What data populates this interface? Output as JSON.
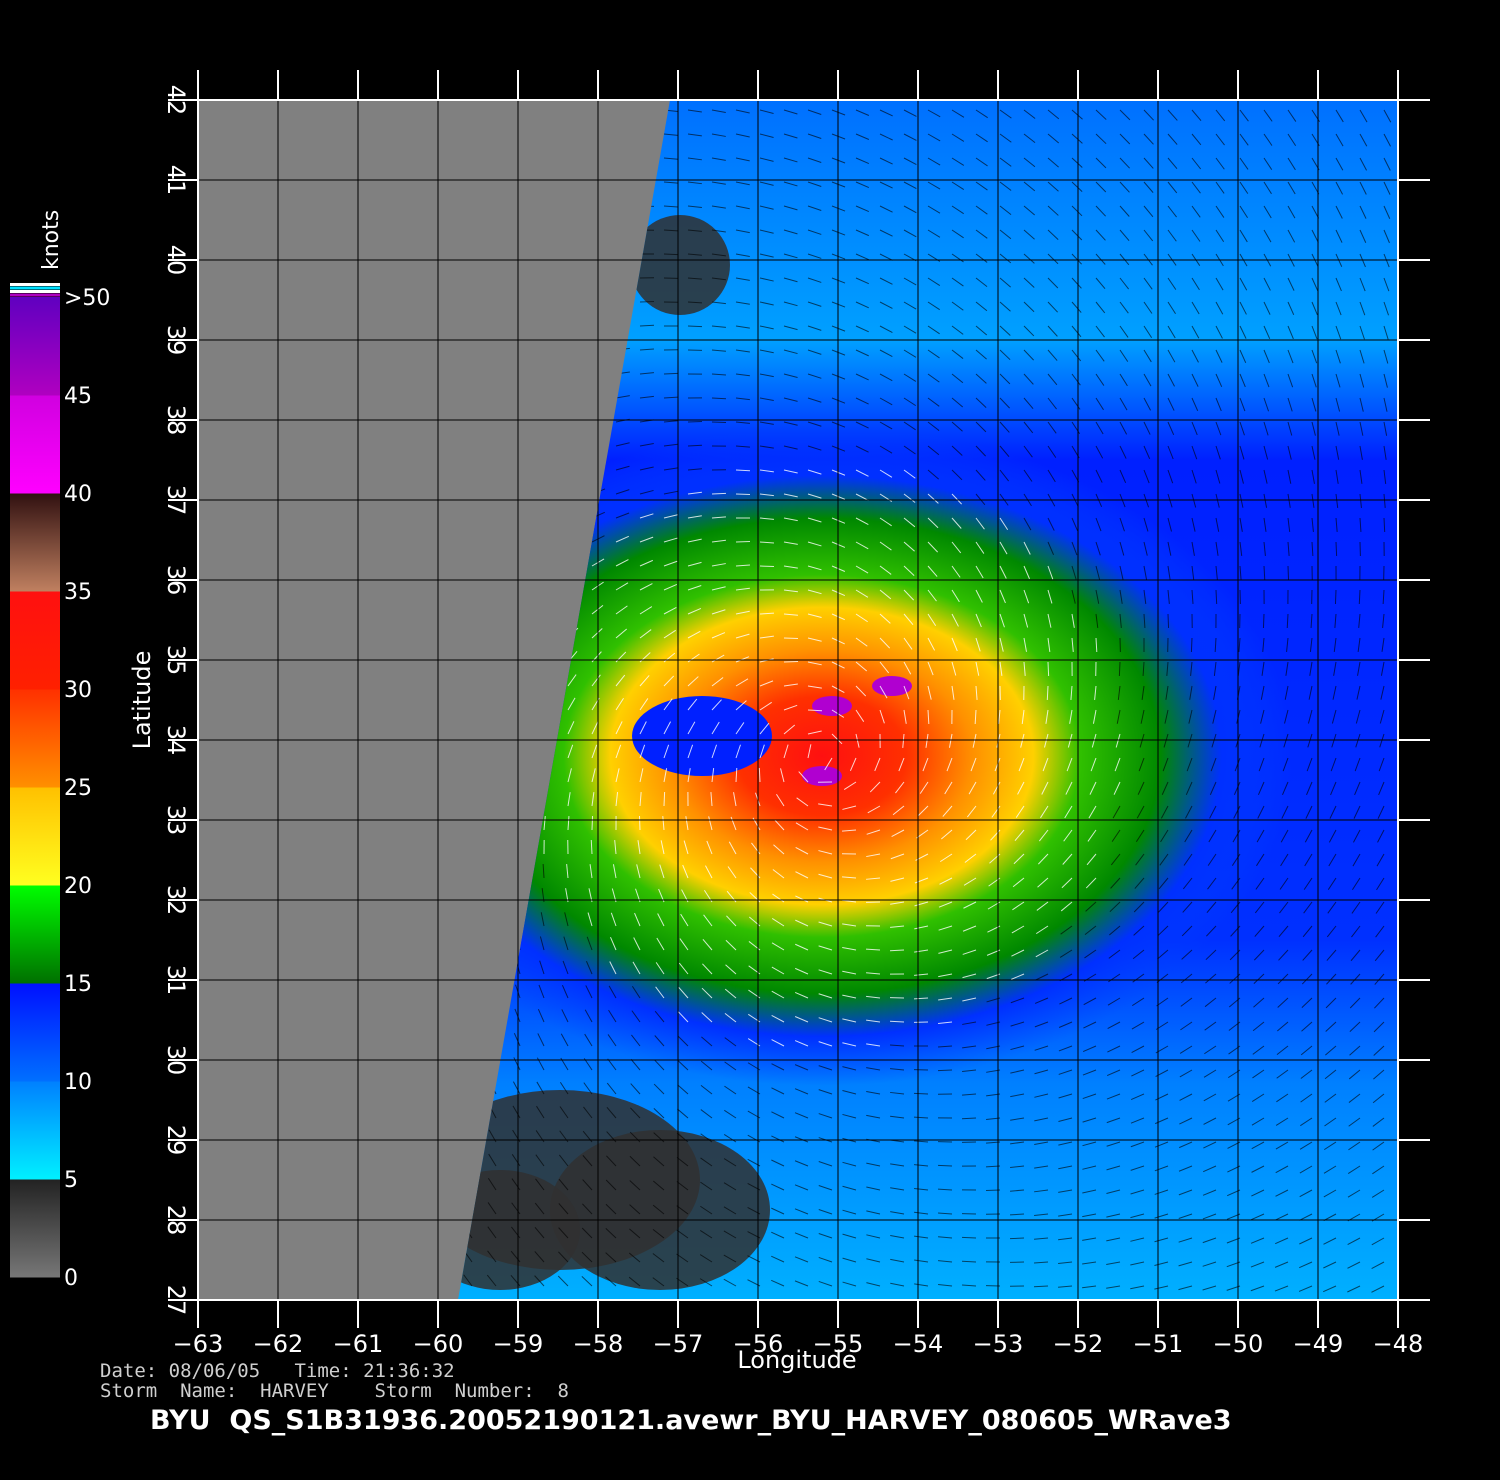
{
  "map": {
    "lon_ticks": [
      "-63",
      "-62",
      "-61",
      "-60",
      "-59",
      "-58",
      "-57",
      "-56",
      "-55",
      "-54",
      "-53",
      "-52",
      "-51",
      "-50",
      "-49",
      "-48"
    ],
    "lat_ticks": [
      "27",
      "28",
      "29",
      "30",
      "31",
      "32",
      "33",
      "34",
      "35",
      "36",
      "37",
      "38",
      "39",
      "40",
      "41",
      "42"
    ],
    "lon_range": [
      -63,
      -48
    ],
    "lat_range": [
      27,
      42
    ],
    "xlabel": "Longitude",
    "ylabel": "Latitude",
    "storm_center": {
      "lon": -55.2,
      "lat": 33.8
    },
    "no_data_color": "#808080",
    "grid_color": "#000000"
  },
  "colorbar": {
    "unit": "knots",
    "labels": [
      "0",
      "5",
      "10",
      "15",
      "20",
      "25",
      "30",
      "35",
      "40",
      "45",
      ">50"
    ],
    "colors": {
      "0-5": [
        "#777777",
        "#222222"
      ],
      "5-10": [
        "#00f0ff",
        "#0080ff"
      ],
      "10-15": [
        "#0070ff",
        "#0010ff"
      ],
      "15-20": [
        "#007000",
        "#00ff00"
      ],
      "20-25": [
        "#ffff20",
        "#ffc000"
      ],
      "25-30": [
        "#ff9000",
        "#ff3000"
      ],
      "30-35": [
        "#ff2000",
        "#ff1010"
      ],
      "35-40": [
        "#c08060",
        "#301010"
      ],
      "40-45": [
        "#ff00ff",
        "#d000e0"
      ],
      "45-50": [
        "#b000c0",
        "#6000c0"
      ]
    }
  },
  "meta": {
    "date_line": "Date: 08/06/05   Time: 21:36:32",
    "storm_line": "Storm  Name:  HARVEY    Storm  Number:  8",
    "product_id": "BYU  QS_S1B31936.20052190121.avewr_BYU_HARVEY_080605_WRave3"
  }
}
